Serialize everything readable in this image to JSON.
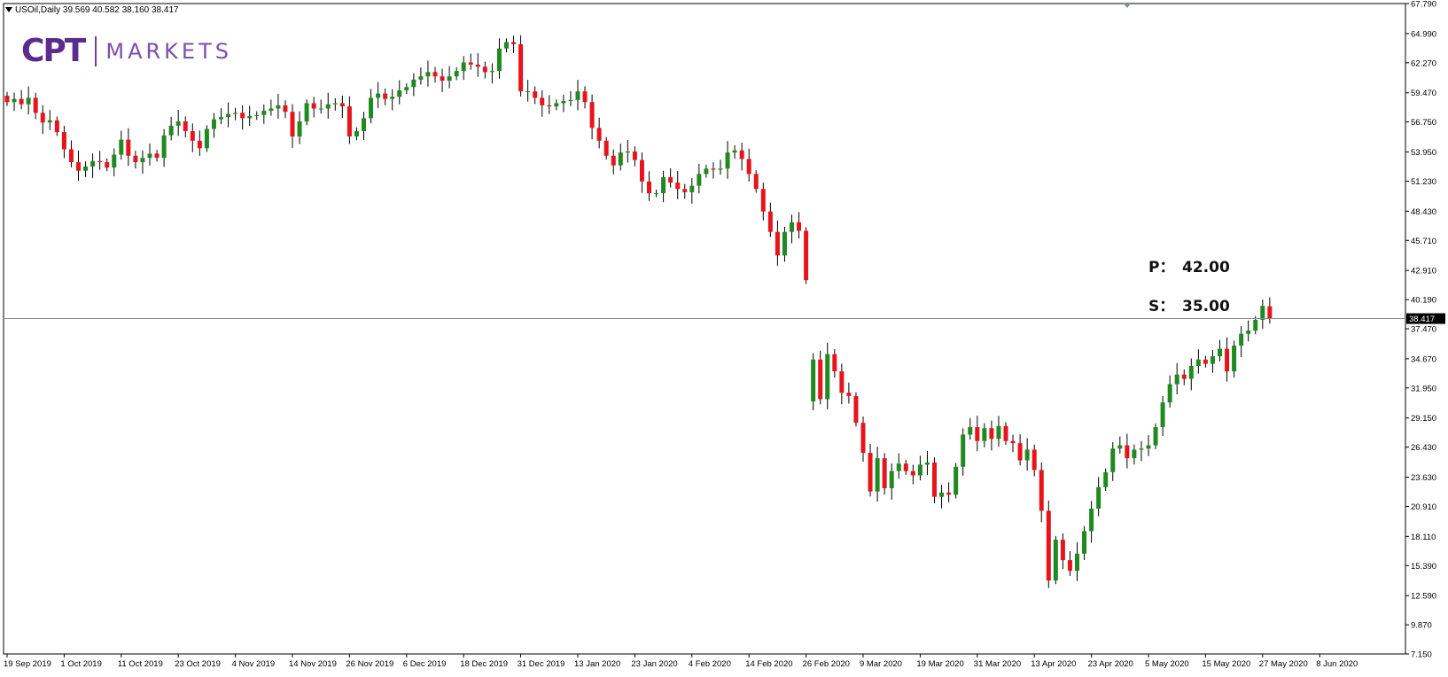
{
  "header": {
    "symbol_line": "USOil,Daily  39.569 40.582 38.160 38.417"
  },
  "logo": {
    "mark": "CPT",
    "text": "MARKETS",
    "color": "#6b3fa0"
  },
  "levels": {
    "p_label": "P：",
    "p_value": "42.00",
    "s_label": "S：",
    "s_value": "35.00"
  },
  "colors": {
    "up": "#1f8a1f",
    "down": "#e8141c",
    "wick": "#000000",
    "grid": "#ffffff",
    "axis": "#000000",
    "current_line": "#7f8c99",
    "price_tag_bg": "#000000"
  },
  "chart_data": {
    "type": "candlestick",
    "title": "",
    "xlabel": "",
    "ylabel": "",
    "ylim": [
      7.15,
      67.79
    ],
    "y_ticks": [
      "67.790",
      "64.990",
      "62.270",
      "59.470",
      "56.750",
      "53.950",
      "51.230",
      "48.430",
      "45.710",
      "42.910",
      "40.190",
      "37.470",
      "34.670",
      "31.950",
      "29.150",
      "26.430",
      "23.630",
      "20.910",
      "18.110",
      "15.390",
      "12.590",
      "9.870",
      "7.150"
    ],
    "x_ticks": [
      {
        "label": "19 Sep 2019",
        "index": 0
      },
      {
        "label": "1 Oct 2019",
        "index": 8
      },
      {
        "label": "11 Oct 2019",
        "index": 16
      },
      {
        "label": "23 Oct 2019",
        "index": 24
      },
      {
        "label": "4 Nov 2019",
        "index": 32
      },
      {
        "label": "14 Nov 2019",
        "index": 40
      },
      {
        "label": "26 Nov 2019",
        "index": 48
      },
      {
        "label": "6 Dec 2019",
        "index": 56
      },
      {
        "label": "18 Dec 2019",
        "index": 64
      },
      {
        "label": "31 Dec 2019",
        "index": 72
      },
      {
        "label": "13 Jan 2020",
        "index": 80
      },
      {
        "label": "23 Jan 2020",
        "index": 88
      },
      {
        "label": "4 Feb 2020",
        "index": 96
      },
      {
        "label": "14 Feb 2020",
        "index": 104
      },
      {
        "label": "26 Feb 2020",
        "index": 112
      },
      {
        "label": "9 Mar 2020",
        "index": 120
      },
      {
        "label": "19 Mar 2020",
        "index": 128
      },
      {
        "label": "31 Mar 2020",
        "index": 136
      },
      {
        "label": "13 Apr 2020",
        "index": 144
      },
      {
        "label": "23 Apr 2020",
        "index": 152
      },
      {
        "label": "5 May 2020",
        "index": 160
      },
      {
        "label": "15 May 2020",
        "index": 168
      },
      {
        "label": "27 May 2020",
        "index": 176
      },
      {
        "label": "8 Jun 2020",
        "index": 184
      }
    ],
    "current_price": 38.417,
    "current_price_label": "38.417",
    "closes": [
      58.6,
      58.9,
      58.4,
      59.0,
      57.6,
      56.7,
      56.9,
      55.8,
      54.2,
      53.0,
      52.2,
      52.6,
      53.1,
      53.0,
      52.5,
      53.7,
      55.1,
      53.6,
      53.0,
      53.4,
      53.8,
      53.4,
      55.5,
      56.4,
      56.8,
      55.9,
      55.0,
      54.3,
      56.1,
      57.0,
      57.2,
      57.5,
      57.6,
      57.1,
      57.3,
      57.4,
      57.8,
      58.0,
      58.3,
      57.7,
      55.4,
      56.8,
      58.5,
      58.0,
      58.0,
      58.4,
      58.5,
      58.2,
      55.4,
      55.9,
      57.1,
      59.0,
      59.4,
      58.9,
      59.1,
      59.7,
      60.0,
      60.7,
      61.0,
      61.4,
      61.0,
      60.6,
      61.0,
      61.5,
      62.3,
      62.1,
      61.9,
      61.4,
      61.5,
      63.6,
      64.2,
      64.0,
      59.6,
      59.6,
      59.0,
      58.3,
      58.2,
      58.5,
      58.7,
      58.8,
      59.6,
      58.6,
      56.2,
      55.0,
      53.6,
      52.7,
      53.9,
      54.0,
      53.2,
      51.2,
      50.1,
      50.1,
      51.6,
      51.1,
      50.5,
      50.2,
      50.8,
      51.9,
      52.4,
      52.3,
      52.4,
      53.9,
      54.1,
      53.3,
      51.9,
      50.5,
      48.4,
      46.5,
      44.3,
      46.5,
      47.4,
      46.6,
      42.0,
      34.6,
      30.9,
      35.1,
      33.5,
      31.5,
      31.2,
      28.7,
      25.9,
      22.3,
      25.4,
      22.6,
      24.2,
      24.9,
      24.2,
      23.8,
      24.8,
      25.0,
      21.8,
      22.2,
      22.0,
      24.6,
      27.6,
      28.3,
      27.0,
      28.2,
      27.2,
      28.4,
      27.0,
      26.8,
      25.2,
      26.2,
      24.3,
      20.5,
      14.0,
      17.8,
      15.9,
      14.9,
      16.5,
      18.6,
      20.7,
      22.7,
      24.1,
      26.3,
      26.6,
      25.4,
      26.2,
      26.3,
      26.6,
      28.3,
      30.6,
      32.3,
      33.2,
      32.8,
      34.0,
      34.6,
      34.2,
      34.9,
      35.6,
      33.5,
      35.9,
      37.0,
      37.3,
      38.3,
      39.6,
      38.417
    ],
    "opens": [
      59.2,
      58.6,
      58.9,
      58.4,
      59.0,
      57.6,
      56.7,
      56.9,
      55.8,
      54.2,
      53.0,
      52.2,
      52.6,
      53.1,
      53.0,
      52.5,
      53.7,
      55.1,
      53.6,
      53.0,
      53.4,
      53.8,
      53.4,
      55.5,
      56.4,
      56.8,
      55.9,
      55.0,
      54.3,
      56.1,
      57.0,
      57.2,
      57.5,
      57.6,
      57.1,
      57.3,
      57.4,
      57.8,
      58.0,
      58.3,
      57.7,
      55.4,
      56.8,
      58.5,
      58.0,
      58.0,
      58.4,
      58.5,
      58.2,
      55.4,
      55.9,
      57.1,
      59.0,
      59.4,
      58.9,
      59.1,
      59.7,
      60.0,
      60.7,
      61.0,
      61.4,
      61.0,
      60.6,
      61.0,
      61.5,
      62.3,
      62.1,
      61.9,
      61.4,
      61.5,
      63.6,
      64.2,
      64.0,
      59.6,
      59.6,
      59.0,
      58.3,
      58.2,
      58.5,
      58.7,
      58.8,
      59.6,
      58.6,
      56.2,
      55.0,
      53.6,
      52.7,
      53.9,
      54.0,
      53.2,
      51.2,
      50.1,
      50.1,
      51.6,
      51.1,
      50.5,
      50.2,
      50.8,
      51.9,
      52.4,
      52.3,
      52.4,
      53.9,
      54.1,
      53.3,
      51.9,
      50.5,
      48.4,
      46.5,
      44.3,
      46.5,
      47.4,
      46.6,
      30.7,
      34.6,
      30.9,
      35.1,
      33.5,
      31.5,
      31.2,
      28.7,
      25.9,
      22.3,
      25.4,
      22.6,
      24.2,
      24.9,
      24.2,
      23.8,
      24.8,
      25.0,
      21.8,
      22.2,
      22.0,
      24.6,
      27.6,
      28.3,
      27.0,
      28.2,
      27.2,
      28.4,
      27.0,
      26.8,
      25.2,
      26.2,
      24.3,
      20.5,
      14.0,
      17.8,
      15.9,
      14.9,
      16.5,
      18.6,
      20.7,
      22.7,
      24.1,
      26.3,
      26.6,
      25.4,
      26.2,
      26.3,
      26.6,
      28.3,
      30.6,
      32.3,
      33.2,
      32.8,
      34.0,
      34.6,
      34.2,
      34.9,
      35.6,
      33.5,
      35.9,
      37.0,
      37.3,
      38.3,
      39.569
    ],
    "gap_after_index": 113
  }
}
